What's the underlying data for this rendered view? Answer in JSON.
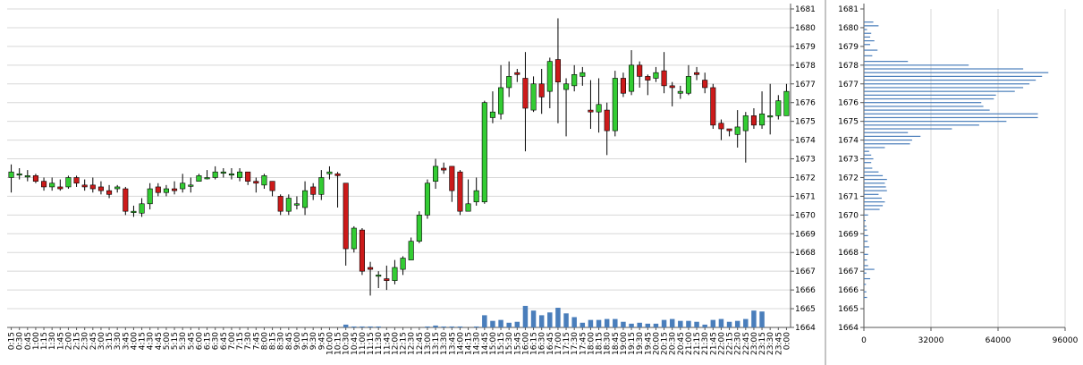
{
  "chart_data": [
    {
      "type": "candlestick",
      "title": "",
      "xlabel": "",
      "ylabel": "",
      "ylim": [
        1664,
        1681
      ],
      "grid": true,
      "y_ticks": [
        "1664",
        "1665",
        "1666",
        "1667",
        "1668",
        "1669",
        "1670",
        "1671",
        "1672",
        "1673",
        "1674",
        "1675",
        "1676",
        "1677",
        "1678",
        "1679",
        "1680",
        "1681"
      ],
      "x_ticks": [
        "0:15",
        "0:30",
        "0:45",
        "1:00",
        "1:15",
        "1:30",
        "1:45",
        "2:00",
        "2:15",
        "2:30",
        "2:45",
        "3:00",
        "3:15",
        "3:30",
        "3:45",
        "4:00",
        "4:15",
        "4:30",
        "4:45",
        "5:00",
        "5:15",
        "5:30",
        "5:45",
        "6:00",
        "6:15",
        "6:30",
        "6:45",
        "7:00",
        "7:15",
        "7:30",
        "7:45",
        "8:00",
        "8:15",
        "8:30",
        "8:45",
        "9:00",
        "9:15",
        "9:30",
        "9:45",
        "10:00",
        "10:15",
        "10:30",
        "10:45",
        "11:00",
        "11:15",
        "11:30",
        "11:45",
        "12:00",
        "12:15",
        "12:30",
        "12:45",
        "13:00",
        "13:15",
        "13:30",
        "13:45",
        "14:00",
        "14:15",
        "14:30",
        "14:45",
        "15:00",
        "15:15",
        "15:30",
        "15:45",
        "16:00",
        "16:15",
        "16:30",
        "16:45",
        "17:00",
        "17:15",
        "17:30",
        "17:45",
        "18:00",
        "18:15",
        "18:30",
        "18:45",
        "19:00",
        "19:15",
        "19:30",
        "19:45",
        "20:00",
        "20:15",
        "20:30",
        "20:45",
        "21:00",
        "21:15",
        "21:30",
        "21:45",
        "22:00",
        "22:15",
        "22:30",
        "22:45",
        "23:00",
        "23:15",
        "23:30",
        "23:45",
        "0:00"
      ],
      "colors": {
        "up": "#33cc33",
        "down": "#cc1a1a",
        "wick": "#000000",
        "volume": "#4a7ebb",
        "grid": "#d8d8d8"
      },
      "candles": [
        [
          1672,
          1672.3,
          1672.7,
          1671.2
        ],
        [
          1672.2,
          1672.2,
          1672.5,
          1671.9
        ],
        [
          1672.1,
          1672.1,
          1672.4,
          1671.8
        ],
        [
          1672.1,
          1671.8,
          1672.2,
          1671.7
        ],
        [
          1671.8,
          1671.5,
          1672.0,
          1671.3
        ],
        [
          1671.5,
          1671.7,
          1672.0,
          1671.3
        ],
        [
          1671.5,
          1671.4,
          1671.9,
          1671.3
        ],
        [
          1671.5,
          1672.0,
          1672.1,
          1671.4
        ],
        [
          1672.0,
          1671.7,
          1672.1,
          1671.5
        ],
        [
          1671.6,
          1671.5,
          1671.9,
          1671.3
        ],
        [
          1671.6,
          1671.4,
          1672.0,
          1671.2
        ],
        [
          1671.5,
          1671.3,
          1671.8,
          1671.1
        ],
        [
          1671.3,
          1671.1,
          1671.6,
          1670.9
        ],
        [
          1671.4,
          1671.5,
          1671.6,
          1671.2
        ],
        [
          1671.4,
          1670.2,
          1671.5,
          1670.0
        ],
        [
          1670.2,
          1670.2,
          1670.5,
          1669.9
        ],
        [
          1670.1,
          1670.6,
          1670.9,
          1669.9
        ],
        [
          1670.6,
          1671.4,
          1671.7,
          1670.3
        ],
        [
          1671.5,
          1671.2,
          1671.7,
          1671.0
        ],
        [
          1671.2,
          1671.4,
          1671.6,
          1671.0
        ],
        [
          1671.4,
          1671.3,
          1671.8,
          1671.1
        ],
        [
          1671.4,
          1671.7,
          1672.2,
          1671.2
        ],
        [
          1671.6,
          1671.6,
          1672.0,
          1671.2
        ],
        [
          1671.8,
          1672.1,
          1672.2,
          1671.8
        ],
        [
          1672.0,
          1672.0,
          1672.4,
          1671.9
        ],
        [
          1672.0,
          1672.3,
          1672.6,
          1671.9
        ],
        [
          1672.3,
          1672.3,
          1672.5,
          1672.0
        ],
        [
          1672.2,
          1672.2,
          1672.5,
          1671.9
        ],
        [
          1672.0,
          1672.3,
          1672.5,
          1671.8
        ],
        [
          1672.3,
          1671.8,
          1672.3,
          1671.6
        ],
        [
          1671.8,
          1671.7,
          1672.0,
          1671.2
        ],
        [
          1671.6,
          1672.1,
          1672.2,
          1671.4
        ],
        [
          1671.8,
          1671.3,
          1671.8,
          1671.0
        ],
        [
          1671.0,
          1670.2,
          1671.1,
          1670.0
        ],
        [
          1670.2,
          1670.9,
          1671.1,
          1670.0
        ],
        [
          1670.6,
          1670.6,
          1671.0,
          1670.3
        ],
        [
          1670.4,
          1671.3,
          1671.8,
          1670.0
        ],
        [
          1671.5,
          1671.1,
          1671.7,
          1670.8
        ],
        [
          1671.1,
          1672.0,
          1672.4,
          1670.8
        ],
        [
          1672.2,
          1672.3,
          1672.6,
          1671.9
        ],
        [
          1672.2,
          1672.1,
          1672.3,
          1670.4
        ],
        [
          1671.7,
          1668.2,
          1671.7,
          1667.3
        ],
        [
          1668.2,
          1669.3,
          1669.4,
          1668.0
        ],
        [
          1669.2,
          1667.0,
          1669.3,
          1666.8
        ],
        [
          1667.2,
          1667.1,
          1667.5,
          1665.7
        ],
        [
          1666.8,
          1666.8,
          1667.0,
          1666.1
        ],
        [
          1666.6,
          1666.5,
          1667.3,
          1666.0
        ],
        [
          1666.5,
          1667.2,
          1667.6,
          1666.3
        ],
        [
          1667.1,
          1667.7,
          1667.8,
          1666.8
        ],
        [
          1667.6,
          1668.6,
          1668.8,
          1667.6
        ],
        [
          1668.6,
          1670.0,
          1670.2,
          1668.5
        ],
        [
          1670.0,
          1671.7,
          1671.9,
          1669.8
        ],
        [
          1671.8,
          1672.6,
          1673.0,
          1671.4
        ],
        [
          1672.5,
          1672.4,
          1672.8,
          1672.2
        ],
        [
          1672.6,
          1671.3,
          1672.6,
          1670.7
        ],
        [
          1672.3,
          1670.2,
          1672.4,
          1670.0
        ],
        [
          1670.2,
          1670.6,
          1671.9,
          1670.2
        ],
        [
          1670.7,
          1671.3,
          1672.0,
          1670.5
        ],
        [
          1670.7,
          1676.0,
          1676.1,
          1670.6
        ],
        [
          1675.2,
          1675.5,
          1676.6,
          1674.9
        ],
        [
          1675.4,
          1676.8,
          1678.0,
          1675.1
        ],
        [
          1676.8,
          1677.4,
          1678.2,
          1676.3
        ],
        [
          1677.6,
          1677.5,
          1677.8,
          1677.1
        ],
        [
          1677.3,
          1675.7,
          1678.7,
          1673.4
        ],
        [
          1675.6,
          1677.0,
          1677.4,
          1675.5
        ],
        [
          1677.0,
          1676.3,
          1677.8,
          1675.4
        ],
        [
          1676.6,
          1678.2,
          1678.4,
          1675.7
        ],
        [
          1678.3,
          1677.1,
          1680.5,
          1674.9
        ],
        [
          1676.7,
          1677.0,
          1677.3,
          1674.2
        ],
        [
          1676.9,
          1677.5,
          1678.0,
          1676.6
        ],
        [
          1677.4,
          1677.6,
          1677.9,
          1676.9
        ],
        [
          1675.6,
          1675.5,
          1677.2,
          1674.6
        ],
        [
          1675.5,
          1675.9,
          1677.3,
          1674.4
        ],
        [
          1675.6,
          1674.5,
          1676.0,
          1673.2
        ],
        [
          1674.5,
          1677.3,
          1677.7,
          1674.2
        ],
        [
          1677.3,
          1676.5,
          1677.6,
          1676.3
        ],
        [
          1676.6,
          1678.0,
          1678.8,
          1676.4
        ],
        [
          1678.0,
          1677.4,
          1678.2,
          1676.8
        ],
        [
          1677.4,
          1677.2,
          1677.5,
          1676.4
        ],
        [
          1677.3,
          1677.6,
          1677.9,
          1677.1
        ],
        [
          1677.7,
          1676.9,
          1678.7,
          1676.5
        ],
        [
          1676.9,
          1676.8,
          1677.1,
          1675.8
        ],
        [
          1676.5,
          1676.6,
          1676.9,
          1676.2
        ],
        [
          1676.5,
          1677.4,
          1678.0,
          1676.4
        ],
        [
          1677.6,
          1677.5,
          1677.9,
          1677.2
        ],
        [
          1677.2,
          1676.8,
          1677.6,
          1676.5
        ],
        [
          1676.8,
          1674.8,
          1677.0,
          1674.6
        ],
        [
          1674.9,
          1674.6,
          1675.1,
          1674.0
        ],
        [
          1674.6,
          1674.5,
          1674.6,
          1674.2
        ],
        [
          1674.3,
          1674.7,
          1675.6,
          1673.6
        ],
        [
          1674.5,
          1675.3,
          1675.5,
          1672.8
        ],
        [
          1675.3,
          1674.8,
          1675.7,
          1674.6
        ],
        [
          1674.8,
          1675.4,
          1676.6,
          1674.6
        ],
        [
          1675.3,
          1675.3,
          1677.0,
          1674.3
        ],
        [
          1675.3,
          1676.1,
          1676.4,
          1675.1
        ],
        [
          1675.3,
          1676.6,
          1677.0,
          1675.4
        ]
      ],
      "volume": [
        0,
        0,
        0,
        0,
        0,
        0,
        0,
        0,
        0,
        0,
        0,
        0,
        0,
        0,
        0,
        0,
        0,
        0,
        0,
        0,
        0,
        0,
        0,
        0,
        0,
        0,
        0,
        0,
        0,
        0,
        0,
        0,
        0,
        0,
        0,
        0,
        0,
        0,
        0,
        0,
        0,
        0.15,
        0.05,
        0.05,
        0.05,
        0.05,
        0,
        0,
        0,
        0,
        0,
        0.05,
        0.1,
        0.05,
        0.05,
        0.05,
        0,
        0.05,
        0.65,
        0.35,
        0.4,
        0.25,
        0.3,
        1.15,
        0.9,
        0.65,
        0.8,
        1.05,
        0.75,
        0.55,
        0.25,
        0.4,
        0.4,
        0.45,
        0.45,
        0.3,
        0.2,
        0.25,
        0.2,
        0.2,
        0.4,
        0.45,
        0.35,
        0.35,
        0.3,
        0.15,
        0.4,
        0.45,
        0.3,
        0.35,
        0.45,
        0.9,
        0.85,
        0,
        0,
        0
      ],
      "volume_scale": "1664"
    },
    {
      "type": "bar",
      "orientation": "horizontal",
      "title": "",
      "xlabel": "",
      "ylabel": "",
      "x_ticks": [
        "0",
        "32000",
        "64000",
        "96000"
      ],
      "xlim": [
        0,
        96000
      ],
      "y_ticks": [
        "1664",
        "1665",
        "1666",
        "1667",
        "1668",
        "1669",
        "1670",
        "1671",
        "1672",
        "1673",
        "1674",
        "1675",
        "1676",
        "1677",
        "1678",
        "1679",
        "1680",
        "1681"
      ],
      "ylim": [
        1664,
        1681
      ],
      "grid": true,
      "bar_color": "#4a7ebb",
      "levels": [
        1665.6,
        1665.9,
        1666.3,
        1666.6,
        1666.9,
        1667.1,
        1667.3,
        1667.6,
        1667.9,
        1668.3,
        1668.6,
        1668.9,
        1669.2,
        1669.4,
        1669.7,
        1670.0,
        1670.3,
        1670.5,
        1670.7,
        1670.9,
        1671.1,
        1671.3,
        1671.5,
        1671.7,
        1671.9,
        1672.1,
        1672.3,
        1672.5,
        1672.8,
        1673.0,
        1673.2,
        1673.4,
        1673.6,
        1673.8,
        1674.0,
        1674.2,
        1674.4,
        1674.6,
        1674.8,
        1675.0,
        1675.2,
        1675.4,
        1675.6,
        1675.8,
        1676.0,
        1676.2,
        1676.4,
        1676.6,
        1676.8,
        1677.0,
        1677.2,
        1677.4,
        1677.6,
        1677.8,
        1678.0,
        1678.2,
        1678.5,
        1678.8,
        1679.1,
        1679.3,
        1679.5,
        1679.7,
        1679.9,
        1680.1,
        1680.3
      ],
      "values": [
        1500,
        1200,
        1000,
        3000,
        1200,
        5000,
        2000,
        1500,
        2000,
        2500,
        1800,
        2000,
        1500,
        1200,
        800,
        2000,
        7500,
        9000,
        10000,
        8500,
        7000,
        11000,
        10500,
        10000,
        11000,
        9000,
        7000,
        4000,
        3500,
        4500,
        3500,
        2500,
        10000,
        22000,
        23000,
        27000,
        21000,
        42000,
        55000,
        68000,
        83000,
        83000,
        60000,
        57000,
        56000,
        62000,
        63000,
        72000,
        76000,
        79000,
        82000,
        85000,
        88000,
        76000,
        50000,
        21000,
        4000,
        6500,
        3000,
        5000,
        3000,
        3500,
        1500,
        7000,
        4500
      ]
    }
  ]
}
